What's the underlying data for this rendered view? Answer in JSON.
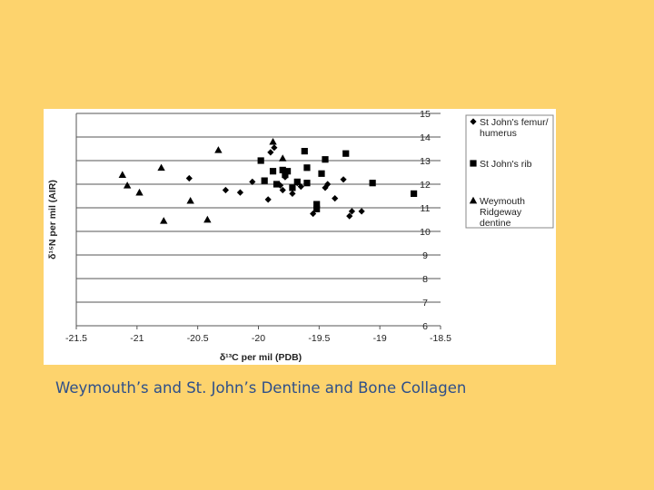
{
  "page": {
    "background": "#fdd36d",
    "caption": "Weymouth’s and St. John’s Dentine and Bone Collagen",
    "caption_color": "#2e4f8a"
  },
  "chart_data": {
    "type": "scatter",
    "title": "",
    "xlabel": "δ¹³C per mil (PDB)",
    "ylabel": "δ¹⁵N per mil (AIR)",
    "xlim": [
      -21.5,
      -18.5
    ],
    "ylim": [
      6,
      15
    ],
    "x_ticks": [
      -21.5,
      -21,
      -20.5,
      -20,
      -19.5,
      -19,
      -18.5
    ],
    "x_tick_labels": [
      "-21.5",
      "-21",
      "-20.5",
      "-20",
      "-19.5",
      "-19",
      "-18.5"
    ],
    "y_ticks": [
      6,
      7,
      8,
      9,
      10,
      11,
      12,
      13,
      14,
      15
    ],
    "y_tick_labels": [
      "6",
      "7",
      "8",
      "9",
      "10",
      "11",
      "12",
      "13",
      "14",
      "15"
    ],
    "grid": "horizontal",
    "y_axis_side": "right",
    "legend_position": "right",
    "series": [
      {
        "name": "St John's femur/ humerus",
        "legend_lines": [
          "St John's femur/",
          "humerus"
        ],
        "marker": "diamond",
        "color": "#000000",
        "points": [
          [
            -20.57,
            12.25
          ],
          [
            -20.27,
            11.75
          ],
          [
            -20.15,
            11.65
          ],
          [
            -20.05,
            12.1
          ],
          [
            -19.92,
            11.35
          ],
          [
            -19.9,
            13.35
          ],
          [
            -19.87,
            13.55
          ],
          [
            -19.82,
            11.95
          ],
          [
            -19.8,
            11.75
          ],
          [
            -19.78,
            12.3
          ],
          [
            -19.72,
            11.6
          ],
          [
            -19.68,
            12.05
          ],
          [
            -19.65,
            11.9
          ],
          [
            -19.55,
            10.75
          ],
          [
            -19.45,
            11.85
          ],
          [
            -19.43,
            12.0
          ],
          [
            -19.37,
            11.4
          ],
          [
            -19.3,
            12.2
          ],
          [
            -19.25,
            10.65
          ],
          [
            -19.23,
            10.85
          ],
          [
            -19.15,
            10.85
          ]
        ]
      },
      {
        "name": "St John's rib",
        "legend_lines": [
          "St John's rib"
        ],
        "marker": "square",
        "color": "#000000",
        "points": [
          [
            -19.98,
            13.0
          ],
          [
            -19.95,
            12.15
          ],
          [
            -19.88,
            12.55
          ],
          [
            -19.85,
            12.0
          ],
          [
            -19.8,
            12.6
          ],
          [
            -19.78,
            12.4
          ],
          [
            -19.76,
            12.55
          ],
          [
            -19.72,
            11.85
          ],
          [
            -19.68,
            12.1
          ],
          [
            -19.62,
            13.4
          ],
          [
            -19.6,
            12.05
          ],
          [
            -19.6,
            12.7
          ],
          [
            -19.52,
            10.95
          ],
          [
            -19.52,
            11.15
          ],
          [
            -19.48,
            12.45
          ],
          [
            -19.45,
            13.05
          ],
          [
            -19.28,
            13.3
          ],
          [
            -19.06,
            12.05
          ],
          [
            -18.72,
            11.6
          ]
        ]
      },
      {
        "name": "Weymouth Ridgeway dentine",
        "legend_lines": [
          "Weymouth",
          "Ridgeway",
          "dentine"
        ],
        "marker": "triangle",
        "color": "#000000",
        "points": [
          [
            -21.12,
            12.4
          ],
          [
            -21.08,
            11.95
          ],
          [
            -20.98,
            11.65
          ],
          [
            -20.8,
            12.7
          ],
          [
            -20.78,
            10.45
          ],
          [
            -20.56,
            11.3
          ],
          [
            -20.42,
            10.5
          ],
          [
            -20.33,
            13.45
          ],
          [
            -19.88,
            13.8
          ],
          [
            -19.8,
            13.1
          ]
        ]
      }
    ]
  }
}
